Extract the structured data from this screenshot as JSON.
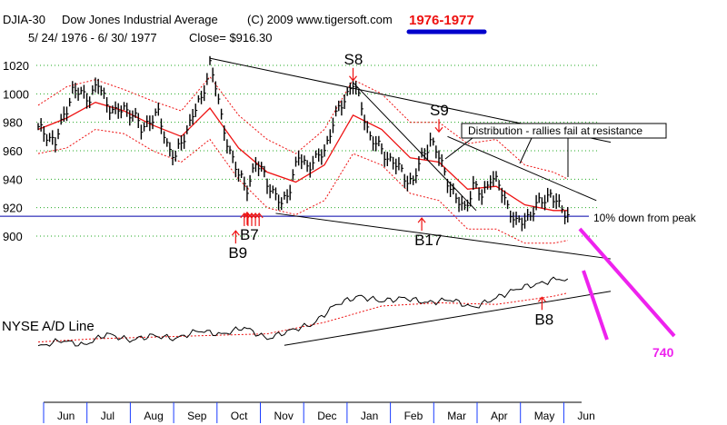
{
  "chart_data": {
    "type": "line",
    "header": {
      "ticker": "DJIA-30",
      "name": "Dow Jones Industrial Average",
      "copyright": "(C) 2009 www.tigersoft.com",
      "period_badge": "1976-1977",
      "date_range": "5/ 24/ 1976 -  6/ 30/ 1977",
      "close_label": "Close= $916.30"
    },
    "colors": {
      "price_bars": "#000000",
      "moving_average": "#ee1111",
      "bands": "#ee1111",
      "gridlines": "#22aa22",
      "reference_line": "#0000aa",
      "signal_arrows": "#ee1111",
      "projection": "#ee22ee",
      "badge_text": "#ee1111",
      "badge_underline": "#0000cc",
      "projection_label": "#ee22ee"
    },
    "y_axis": {
      "ticks": [
        1020,
        1000,
        980,
        960,
        940,
        920,
        900
      ],
      "ylim": [
        892,
        1028
      ]
    },
    "x_axis": {
      "months": [
        "Jun",
        "Jul",
        "Aug",
        "Sep",
        "Oct",
        "Nov",
        "Dec",
        "Jan",
        "Feb",
        "Mar",
        "Apr",
        "May",
        "Jun"
      ]
    },
    "reference_level": 914,
    "price_series": [
      {
        "i": 0,
        "v": 975
      },
      {
        "i": 3,
        "v": 972
      },
      {
        "i": 6,
        "v": 965
      },
      {
        "i": 9,
        "v": 985
      },
      {
        "i": 12,
        "v": 1002
      },
      {
        "i": 15,
        "v": 1000
      },
      {
        "i": 18,
        "v": 998
      },
      {
        "i": 21,
        "v": 1006
      },
      {
        "i": 24,
        "v": 994
      },
      {
        "i": 27,
        "v": 986
      },
      {
        "i": 30,
        "v": 990
      },
      {
        "i": 33,
        "v": 986
      },
      {
        "i": 36,
        "v": 975
      },
      {
        "i": 39,
        "v": 982
      },
      {
        "i": 42,
        "v": 985
      },
      {
        "i": 45,
        "v": 965
      },
      {
        "i": 48,
        "v": 955
      },
      {
        "i": 51,
        "v": 970
      },
      {
        "i": 54,
        "v": 986
      },
      {
        "i": 57,
        "v": 995
      },
      {
        "i": 60,
        "v": 1022
      },
      {
        "i": 62,
        "v": 1005
      },
      {
        "i": 64,
        "v": 982
      },
      {
        "i": 67,
        "v": 960
      },
      {
        "i": 70,
        "v": 942
      },
      {
        "i": 73,
        "v": 935
      },
      {
        "i": 76,
        "v": 950
      },
      {
        "i": 79,
        "v": 944
      },
      {
        "i": 82,
        "v": 930
      },
      {
        "i": 85,
        "v": 922
      },
      {
        "i": 88,
        "v": 935
      },
      {
        "i": 91,
        "v": 955
      },
      {
        "i": 94,
        "v": 950
      },
      {
        "i": 97,
        "v": 953
      },
      {
        "i": 100,
        "v": 960
      },
      {
        "i": 103,
        "v": 980
      },
      {
        "i": 106,
        "v": 992
      },
      {
        "i": 109,
        "v": 1005
      },
      {
        "i": 110,
        "v": 1008
      },
      {
        "i": 113,
        "v": 990
      },
      {
        "i": 116,
        "v": 970
      },
      {
        "i": 119,
        "v": 962
      },
      {
        "i": 122,
        "v": 956
      },
      {
        "i": 125,
        "v": 950
      },
      {
        "i": 128,
        "v": 942
      },
      {
        "i": 131,
        "v": 938
      },
      {
        "i": 134,
        "v": 955
      },
      {
        "i": 137,
        "v": 968
      },
      {
        "i": 140,
        "v": 955
      },
      {
        "i": 143,
        "v": 940
      },
      {
        "i": 146,
        "v": 925
      },
      {
        "i": 149,
        "v": 920
      },
      {
        "i": 152,
        "v": 935
      },
      {
        "i": 155,
        "v": 928
      },
      {
        "i": 158,
        "v": 942
      },
      {
        "i": 161,
        "v": 935
      },
      {
        "i": 164,
        "v": 922
      },
      {
        "i": 167,
        "v": 908
      },
      {
        "i": 170,
        "v": 912
      },
      {
        "i": 173,
        "v": 918
      },
      {
        "i": 176,
        "v": 925
      },
      {
        "i": 179,
        "v": 930
      },
      {
        "i": 182,
        "v": 920
      },
      {
        "i": 185,
        "v": 916
      }
    ],
    "moving_average": [
      {
        "i": 0,
        "v": 975
      },
      {
        "i": 10,
        "v": 983
      },
      {
        "i": 20,
        "v": 994
      },
      {
        "i": 30,
        "v": 988
      },
      {
        "i": 40,
        "v": 978
      },
      {
        "i": 50,
        "v": 970
      },
      {
        "i": 60,
        "v": 990
      },
      {
        "i": 70,
        "v": 962
      },
      {
        "i": 80,
        "v": 945
      },
      {
        "i": 90,
        "v": 938
      },
      {
        "i": 100,
        "v": 950
      },
      {
        "i": 110,
        "v": 985
      },
      {
        "i": 120,
        "v": 975
      },
      {
        "i": 130,
        "v": 955
      },
      {
        "i": 140,
        "v": 952
      },
      {
        "i": 150,
        "v": 933
      },
      {
        "i": 160,
        "v": 935
      },
      {
        "i": 170,
        "v": 922
      },
      {
        "i": 180,
        "v": 918
      },
      {
        "i": 185,
        "v": 918
      }
    ],
    "upper_band": [
      {
        "i": 0,
        "v": 992
      },
      {
        "i": 10,
        "v": 1005
      },
      {
        "i": 20,
        "v": 1010
      },
      {
        "i": 30,
        "v": 1003
      },
      {
        "i": 40,
        "v": 995
      },
      {
        "i": 50,
        "v": 988
      },
      {
        "i": 60,
        "v": 1012
      },
      {
        "i": 70,
        "v": 985
      },
      {
        "i": 80,
        "v": 968
      },
      {
        "i": 90,
        "v": 958
      },
      {
        "i": 100,
        "v": 975
      },
      {
        "i": 110,
        "v": 1010
      },
      {
        "i": 120,
        "v": 1000
      },
      {
        "i": 130,
        "v": 980
      },
      {
        "i": 140,
        "v": 980
      },
      {
        "i": 150,
        "v": 965
      },
      {
        "i": 160,
        "v": 968
      },
      {
        "i": 170,
        "v": 950
      },
      {
        "i": 180,
        "v": 945
      },
      {
        "i": 185,
        "v": 940
      }
    ],
    "lower_band": [
      {
        "i": 0,
        "v": 958
      },
      {
        "i": 10,
        "v": 962
      },
      {
        "i": 20,
        "v": 975
      },
      {
        "i": 30,
        "v": 972
      },
      {
        "i": 40,
        "v": 960
      },
      {
        "i": 50,
        "v": 952
      },
      {
        "i": 60,
        "v": 968
      },
      {
        "i": 70,
        "v": 940
      },
      {
        "i": 80,
        "v": 920
      },
      {
        "i": 90,
        "v": 915
      },
      {
        "i": 100,
        "v": 925
      },
      {
        "i": 110,
        "v": 958
      },
      {
        "i": 120,
        "v": 950
      },
      {
        "i": 130,
        "v": 930
      },
      {
        "i": 140,
        "v": 925
      },
      {
        "i": 150,
        "v": 905
      },
      {
        "i": 160,
        "v": 905
      },
      {
        "i": 170,
        "v": 895
      },
      {
        "i": 180,
        "v": 895
      },
      {
        "i": 185,
        "v": 897
      }
    ],
    "ad_line": {
      "label": "NYSE A/D Line",
      "series": [
        {
          "i": 0,
          "v": 20
        },
        {
          "i": 8,
          "v": 28
        },
        {
          "i": 16,
          "v": 22
        },
        {
          "i": 24,
          "v": 36
        },
        {
          "i": 32,
          "v": 28
        },
        {
          "i": 40,
          "v": 34
        },
        {
          "i": 48,
          "v": 30
        },
        {
          "i": 56,
          "v": 40
        },
        {
          "i": 64,
          "v": 35
        },
        {
          "i": 72,
          "v": 44
        },
        {
          "i": 80,
          "v": 30
        },
        {
          "i": 88,
          "v": 40
        },
        {
          "i": 96,
          "v": 48
        },
        {
          "i": 104,
          "v": 72
        },
        {
          "i": 112,
          "v": 82
        },
        {
          "i": 120,
          "v": 76
        },
        {
          "i": 128,
          "v": 80
        },
        {
          "i": 136,
          "v": 74
        },
        {
          "i": 144,
          "v": 78
        },
        {
          "i": 152,
          "v": 68
        },
        {
          "i": 160,
          "v": 80
        },
        {
          "i": 168,
          "v": 92
        },
        {
          "i": 176,
          "v": 98
        },
        {
          "i": 182,
          "v": 104
        },
        {
          "i": 185,
          "v": 100
        }
      ],
      "moving_average": [
        {
          "i": 0,
          "v": 26
        },
        {
          "i": 20,
          "v": 30
        },
        {
          "i": 40,
          "v": 32
        },
        {
          "i": 60,
          "v": 34
        },
        {
          "i": 80,
          "v": 36
        },
        {
          "i": 100,
          "v": 50
        },
        {
          "i": 120,
          "v": 70
        },
        {
          "i": 140,
          "v": 74
        },
        {
          "i": 160,
          "v": 72
        },
        {
          "i": 180,
          "v": 82
        },
        {
          "i": 185,
          "v": 86
        }
      ]
    },
    "trendlines": [
      {
        "name": "price-upper-trendline",
        "from": {
          "i": 60,
          "v": 1025
        },
        "to": {
          "i": 200,
          "v": 966
        }
      },
      {
        "name": "price-lower-trendline",
        "from": {
          "i": 83,
          "v": 916
        },
        "to": {
          "i": 200,
          "v": 884
        }
      },
      {
        "name": "s8-decline-trendline",
        "from": {
          "i": 110,
          "v": 1008
        },
        "to": {
          "i": 153,
          "v": 918
        }
      },
      {
        "name": "s9-decline-trendline",
        "from": {
          "i": 143,
          "v": 970
        },
        "to": {
          "i": 195,
          "v": 925
        }
      },
      {
        "name": "ad-support-trendline",
        "from": {
          "i": 86,
          "v": 22
        },
        "to": {
          "i": 200,
          "v": 88
        }
      }
    ],
    "signals": [
      {
        "label": "S8",
        "type": "sell",
        "i": 110,
        "v": 1008
      },
      {
        "label": "S9",
        "type": "sell",
        "i": 140,
        "v": 972
      },
      {
        "label": "B17",
        "type": "buy",
        "i": 134,
        "v": 914
      },
      {
        "label": "B9",
        "type": "buy",
        "i": 69,
        "v": 905
      },
      {
        "label": "B7",
        "type": "buy",
        "i": 73,
        "v": 918
      },
      {
        "label": "B8",
        "type": "buy",
        "i": 176,
        "v": 83
      }
    ],
    "annotations": {
      "distribution": "Distribution - rallies fail at resistance",
      "ten_percent": "10% down from peak",
      "projection": "740"
    }
  }
}
